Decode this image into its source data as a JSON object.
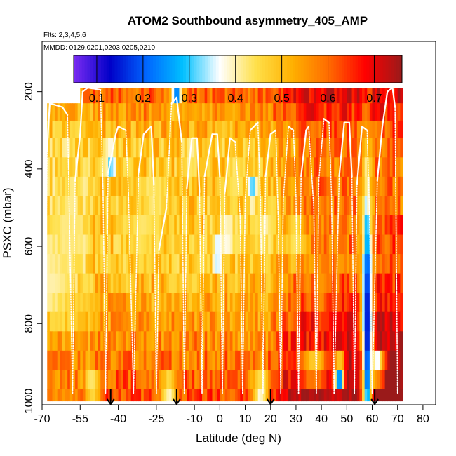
{
  "chart_data": {
    "type": "heatmap",
    "title": "ATOM2 Southbound asymmetry_405_AMP",
    "flights_label": "Flts: 2,3,4,5,6",
    "dates_label": "MMDD: 0129,0201,0203,0205,0210",
    "xlabel": "Latitude (deg N)",
    "ylabel": "PSXC (mbar)",
    "xlim": [
      -70,
      85
    ],
    "ylim": [
      1010,
      70
    ],
    "x_ticks": [
      -70,
      -55,
      -40,
      -25,
      -10,
      0,
      10,
      20,
      30,
      40,
      50,
      60,
      70,
      80
    ],
    "x_tick_labels": [
      "-70",
      "-55",
      "-40",
      "-25",
      "-10",
      "0",
      "10",
      "20",
      "30",
      "40",
      "50",
      "60",
      "70",
      "80"
    ],
    "y_ticks": [
      200,
      400,
      600,
      800,
      1000
    ],
    "y_tick_labels": [
      "200",
      "400",
      "600",
      "800",
      "1000"
    ],
    "colorbar": {
      "min": 0.05,
      "max": 0.76,
      "ticks": [
        0.1,
        0.2,
        0.3,
        0.4,
        0.5,
        0.6,
        0.7
      ],
      "tick_labels": [
        "0.1",
        "0.2",
        "0.3",
        "0.4",
        "0.5",
        "0.6",
        "0.7"
      ],
      "colors": [
        "#7b2cf2",
        "#0000c8",
        "#0066ff",
        "#00c0ff",
        "#ffffff",
        "#ffe04a",
        "#ffb000",
        "#ff6a00",
        "#ff0000",
        "#9a1a1a"
      ]
    },
    "pressure_levels": [
      190,
      230,
      275,
      320,
      370,
      420,
      470,
      520,
      570,
      620,
      670,
      720,
      770,
      820,
      870,
      920,
      970,
      1000
    ],
    "lat_range": [
      -68,
      72
    ],
    "base_field": {
      "description_free": true,
      "surface_lat_peak": 0.62,
      "free_trop_value": 0.5
    },
    "anomalies": [
      {
        "lat": -66,
        "p": 700,
        "w": 8,
        "h": 90,
        "v": 0.4
      },
      {
        "lat": -60,
        "p": 560,
        "w": 6,
        "h": 120,
        "v": 0.42
      },
      {
        "lat": -43,
        "p": 380,
        "w": 2,
        "h": 40,
        "v": 0.28
      },
      {
        "lat": -31,
        "p": 560,
        "w": 6,
        "h": 60,
        "v": 0.43
      },
      {
        "lat": -25,
        "p": 470,
        "w": 5,
        "h": 50,
        "v": 0.42
      },
      {
        "lat": -17,
        "p": 208,
        "w": 2,
        "h": 40,
        "v": 0.22
      },
      {
        "lat": -12,
        "p": 370,
        "w": 2,
        "h": 30,
        "v": 0.33
      },
      {
        "lat": -1,
        "p": 620,
        "w": 2,
        "h": 40,
        "v": 0.3
      },
      {
        "lat": 3,
        "p": 570,
        "w": 3,
        "h": 50,
        "v": 0.36
      },
      {
        "lat": 6,
        "p": 420,
        "w": 3,
        "h": 60,
        "v": 0.42
      },
      {
        "lat": 13,
        "p": 450,
        "w": 2,
        "h": 40,
        "v": 0.3
      },
      {
        "lat": 18,
        "p": 560,
        "w": 4,
        "h": 50,
        "v": 0.4
      },
      {
        "lat": 16,
        "p": 970,
        "w": 3,
        "h": 40,
        "v": 0.35
      },
      {
        "lat": -20,
        "p": 970,
        "w": 3,
        "h": 35,
        "v": 0.35
      },
      {
        "lat": 37,
        "p": 910,
        "w": 6,
        "h": 45,
        "v": 0.45
      },
      {
        "lat": 47,
        "p": 930,
        "w": 2,
        "h": 40,
        "v": 0.15
      },
      {
        "lat": 58,
        "p": 800,
        "w": 2,
        "h": 370,
        "v": 0.12
      },
      {
        "lat": 62,
        "p": 910,
        "w": 3,
        "h": 40,
        "v": 0.3
      },
      {
        "lat": 30,
        "p": 580,
        "w": 4,
        "h": 60,
        "v": 0.42
      },
      {
        "lat": 40,
        "p": 700,
        "w": 3,
        "h": 80,
        "v": 0.55
      },
      {
        "lat": -50,
        "p": 960,
        "w": 3,
        "h": 40,
        "v": 0.4
      }
    ],
    "flight_track_points": [
      [
        -69,
        990
      ],
      [
        -68,
        350
      ],
      [
        -67,
        230
      ],
      [
        -62,
        240
      ],
      [
        -60,
        260
      ],
      [
        -58,
        980
      ],
      [
        -57,
        430
      ],
      [
        -55,
        310
      ],
      [
        -54,
        200
      ],
      [
        -52,
        190
      ],
      [
        -47,
        195
      ],
      [
        -46,
        460
      ],
      [
        -45,
        980
      ],
      [
        -44,
        410
      ],
      [
        -41,
        310
      ],
      [
        -40,
        290
      ],
      [
        -37,
        300
      ],
      [
        -36,
        460
      ],
      [
        -34,
        980
      ],
      [
        -33,
        700
      ],
      [
        -32,
        410
      ],
      [
        -30,
        310
      ],
      [
        -27,
        290
      ],
      [
        -26,
        440
      ],
      [
        -25,
        980
      ],
      [
        -24,
        610
      ],
      [
        -21,
        500
      ],
      [
        -19,
        230
      ],
      [
        -17,
        215
      ],
      [
        -15,
        330
      ],
      [
        -14,
        980
      ],
      [
        -13,
        450
      ],
      [
        -11,
        320
      ],
      [
        -9,
        320
      ],
      [
        -8,
        460
      ],
      [
        -7,
        980
      ],
      [
        -6,
        420
      ],
      [
        -3,
        310
      ],
      [
        -1,
        310
      ],
      [
        0,
        420
      ],
      [
        1,
        980
      ],
      [
        2,
        460
      ],
      [
        4,
        320
      ],
      [
        6,
        330
      ],
      [
        8,
        520
      ],
      [
        9,
        980
      ],
      [
        10,
        480
      ],
      [
        12,
        300
      ],
      [
        15,
        280
      ],
      [
        16,
        480
      ],
      [
        17,
        980
      ],
      [
        18,
        420
      ],
      [
        20,
        310
      ],
      [
        22,
        300
      ],
      [
        23,
        530
      ],
      [
        24,
        980
      ],
      [
        25,
        480
      ],
      [
        27,
        290
      ],
      [
        29,
        300
      ],
      [
        30,
        470
      ],
      [
        31,
        980
      ],
      [
        32,
        420
      ],
      [
        34,
        300
      ],
      [
        35,
        290
      ],
      [
        37,
        500
      ],
      [
        38,
        980
      ],
      [
        39,
        430
      ],
      [
        41,
        270
      ],
      [
        43,
        280
      ],
      [
        44,
        470
      ],
      [
        45,
        980
      ],
      [
        47,
        420
      ],
      [
        49,
        280
      ],
      [
        51,
        280
      ],
      [
        52,
        420
      ],
      [
        53,
        980
      ],
      [
        54,
        440
      ],
      [
        56,
        290
      ],
      [
        58,
        300
      ],
      [
        59,
        530
      ],
      [
        60,
        980
      ],
      [
        62,
        430
      ],
      [
        64,
        290
      ],
      [
        66,
        200
      ],
      [
        68,
        190
      ],
      [
        69,
        240
      ],
      [
        70,
        980
      ]
    ],
    "arrows": [
      {
        "lat": -43,
        "label": ""
      },
      {
        "lat": -17,
        "label": ""
      },
      {
        "lat": 20,
        "label": ""
      },
      {
        "lat": 61,
        "label": ""
      }
    ]
  }
}
